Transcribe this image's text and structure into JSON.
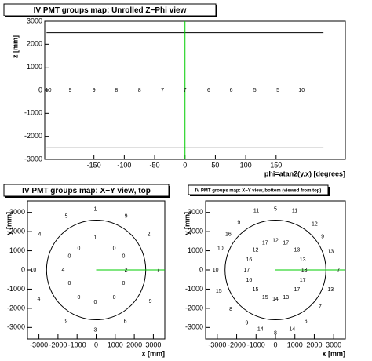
{
  "chart_data": [
    {
      "type": "label_map",
      "title": "IV PMT groups map: Unrolled Z−Phi view",
      "x_label": "phi=atan2(y,x) [degrees]",
      "y_label": "z [mm]",
      "xlim": [
        -231,
        264
      ],
      "ylim": [
        -3000,
        3000
      ],
      "xticks": [
        -150,
        -100,
        -50,
        0,
        50,
        100,
        150
      ],
      "yticks": [
        -3000,
        -2000,
        -1000,
        0,
        1000,
        2000,
        3000
      ],
      "lines": [
        {
          "color": "#000000",
          "x": [
            -228,
            228
          ],
          "y": [
            2500,
            2500
          ]
        },
        {
          "color": "#000000",
          "x": [
            -228,
            228
          ],
          "y": [
            -2500,
            -2500
          ]
        },
        {
          "color": "#00cc00",
          "x": [
            0,
            0
          ],
          "y": [
            -3000,
            3000
          ]
        }
      ],
      "points": {
        "x": [
          -225,
          -189,
          -150,
          -113,
          -75,
          -37,
          0,
          39,
          76,
          115,
          153,
          192
        ],
        "y": [
          0,
          0,
          0,
          0,
          0,
          0,
          0,
          0,
          0,
          0,
          0,
          0
        ],
        "labels": [
          "10",
          "9",
          "9",
          "8",
          "8",
          "7",
          "7",
          "6",
          "6",
          "5",
          "5",
          "10"
        ]
      }
    },
    {
      "type": "label_map",
      "title": "IV PMT groups map: X−Y view, top",
      "x_label": "x [mm]",
      "y_label": "y [mm]",
      "xlim": [
        -3600,
        3600
      ],
      "ylim": [
        -3600,
        3600
      ],
      "xticks": [
        -3000,
        -2000,
        -1000,
        0,
        1000,
        2000,
        3000
      ],
      "yticks": [
        -3000,
        -2000,
        -1000,
        0,
        1000,
        2000,
        3000
      ],
      "circle_r": 2600,
      "lines": [
        {
          "color": "#00cc00",
          "x": [
            0,
            3600
          ],
          "y": [
            0,
            0
          ]
        }
      ],
      "points": {
        "x": [
          -41,
          -1565,
          1565,
          2760,
          -2965,
          -3295,
          3255,
          -3005,
          2840,
          -1565,
          -41,
          1525,
          -905,
          -41,
          950,
          -1400,
          -1730,
          1565,
          1440,
          -1400,
          1440,
          -905,
          -41,
          950
        ],
        "y": [
          3170,
          2800,
          2800,
          1855,
          1855,
          0,
          0,
          -1525,
          -1650,
          -2680,
          -3130,
          -2680,
          1110,
          1690,
          1110,
          700,
          0,
          0,
          700,
          -700,
          -700,
          -1440,
          -1690,
          -1440
        ],
        "labels": [
          "1",
          "5",
          "9",
          "2",
          "4",
          "10",
          "7",
          "4",
          "9",
          "9",
          "3",
          "6",
          "0",
          "1",
          "0",
          "0",
          "4",
          "2",
          "0",
          "0",
          "0",
          "0",
          "0",
          "0"
        ]
      }
    },
    {
      "type": "label_map",
      "title": "IV PMT groups map: X−Y view, bottom (viewed from top)",
      "x_label": "x [mm]",
      "y_label": "y [mm]",
      "xlim": [
        -3600,
        3600
      ],
      "ylim": [
        -3600,
        3600
      ],
      "xticks": [
        -3000,
        -2000,
        -1000,
        0,
        1000,
        2000,
        3000
      ],
      "yticks": [
        -3000,
        -2000,
        -1000,
        0,
        1000,
        2000,
        3000
      ],
      "circle_r": 2600,
      "lines": [
        {
          "color": "#00cc00",
          "x": [
            0,
            3600
          ],
          "y": [
            0,
            0
          ]
        }
      ],
      "points": {
        "x": [
          0,
          -990,
          990,
          -1890,
          2020,
          -2430,
          2430,
          -2840,
          2840,
          -3090,
          3250,
          -2920,
          2840,
          -2300,
          2300,
          -1480,
          1560,
          -780,
          0,
          860,
          -535,
          0,
          535,
          1110,
          -1030,
          -1360,
          1400,
          -1480,
          1480,
          -1360,
          1400,
          -1030,
          1110,
          -535,
          0,
          535
        ],
        "y": [
          3170,
          3090,
          3090,
          2470,
          2390,
          1850,
          1730,
          1110,
          950,
          0,
          0,
          -1110,
          -1030,
          -2060,
          -1930,
          -2760,
          -2680,
          -3090,
          -3290,
          -3090,
          1400,
          1520,
          1400,
          1030,
          1030,
          535,
          535,
          0,
          0,
          -535,
          -535,
          -1030,
          -1030,
          -1440,
          -1520,
          -1440
        ],
        "labels": [
          "5",
          "11",
          "11",
          "9",
          "12",
          "16",
          "9",
          "10",
          "13",
          "10",
          "7",
          "15",
          "13",
          "8",
          "7",
          "9",
          "6",
          "14",
          "8",
          "14",
          "17",
          "12",
          "17",
          "13",
          "12",
          "16",
          "13",
          "17",
          "13",
          "16",
          "17",
          "15",
          "17",
          "15",
          "14",
          "13"
        ]
      }
    }
  ]
}
